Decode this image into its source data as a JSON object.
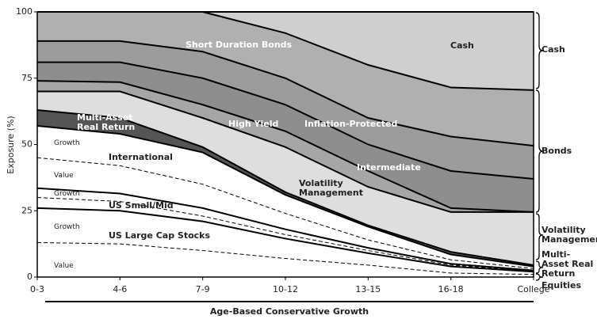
{
  "chart_data": {
    "type": "stacked_area",
    "x_title": "Age-Based Conservative Growth",
    "y_title": "Exposure (%)",
    "categories": [
      "0-3",
      "4-6",
      "7-9",
      "10-12",
      "13-15",
      "16-18",
      "College"
    ],
    "ylim": [
      0,
      100
    ],
    "yticks": [
      0,
      25,
      50,
      75,
      100
    ],
    "series": [
      {
        "color": "#ffffff",
        "border": "dashed",
        "values": [
          13,
          12.5,
          10,
          7,
          4.5,
          1.5,
          1
        ]
      },
      {
        "color": "#ffffff",
        "border": "solid",
        "values": [
          13,
          12.5,
          11,
          7.5,
          4.5,
          2.5,
          1
        ]
      },
      {
        "color": "#ffffff",
        "border": "dashed",
        "values": [
          4,
          3.5,
          2,
          1.5,
          1,
          0.5,
          0.3
        ]
      },
      {
        "color": "#ffffff",
        "border": "solid",
        "values": [
          3.5,
          3,
          3,
          2,
          1,
          0.5,
          0.2
        ]
      },
      {
        "color": "#ffffff",
        "border": "dashed",
        "values": [
          11.5,
          10.5,
          9,
          6,
          3,
          1.5,
          0.7
        ]
      },
      {
        "color": "#ffffff",
        "border": "solid",
        "values": [
          12,
          12,
          12,
          7,
          5,
          2,
          0.8
        ]
      },
      {
        "color": "#555555",
        "border": "solid",
        "values": [
          6,
          6,
          2,
          1,
          0.5,
          1,
          0.5
        ]
      },
      {
        "color": "#dedede",
        "border": "solid",
        "values": [
          7,
          10,
          11,
          17,
          14.5,
          15,
          20
        ]
      },
      {
        "color": "#a6a6a6",
        "border": "solid",
        "values": [
          4,
          3.5,
          5,
          6,
          6,
          1.5,
          0
        ]
      },
      {
        "color": "#8e8e8e",
        "border": "solid",
        "values": [
          7,
          7.5,
          10,
          10,
          10,
          14,
          12.5
        ]
      },
      {
        "color": "#9c9c9c",
        "border": "solid",
        "values": [
          8,
          8,
          10,
          10,
          10,
          13,
          12.5
        ]
      },
      {
        "color": "#b0b0b0",
        "border": "solid",
        "values": [
          11,
          11,
          15,
          17,
          20,
          18.5,
          21
        ]
      },
      {
        "color": "#cfcfcf",
        "border": "solid",
        "values": [
          0,
          0,
          0,
          8,
          20,
          28.5,
          29.5
        ]
      }
    ],
    "annotations": [
      "Growth",
      "Value",
      "Growth",
      "Growth",
      "Value",
      "International",
      "Multi-Asset Real Return",
      "US Small/Mid",
      "US Large Cap Stocks",
      "High Yield",
      "Inflation-Protected",
      "Volatility Management",
      "Intermediate",
      "Short Duration Bonds",
      "Cash"
    ],
    "groups": [
      "Cash",
      "Bonds",
      "Volatility Management",
      "Multi-Asset Real Return",
      "Equities"
    ]
  }
}
